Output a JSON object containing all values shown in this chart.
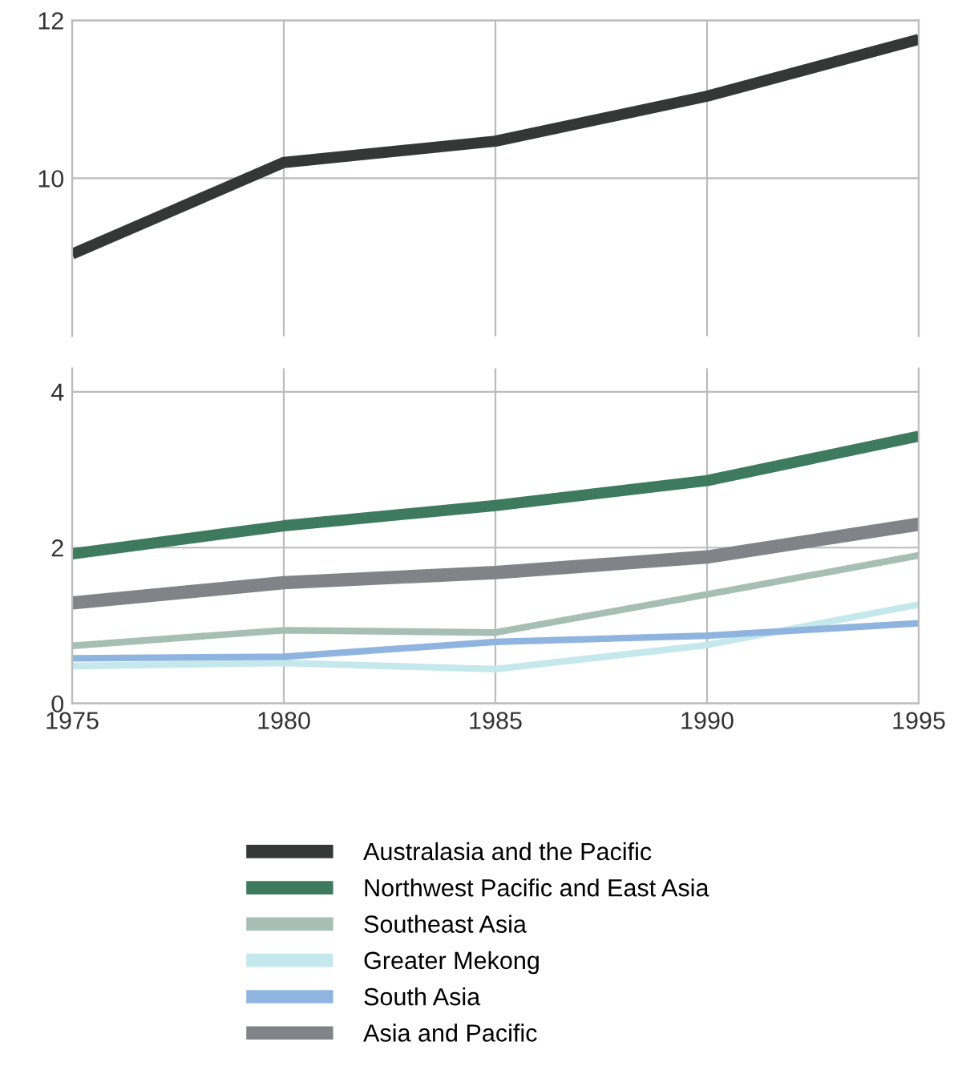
{
  "chart_data": [
    {
      "type": "line",
      "x": [
        1975,
        1980,
        1985,
        1990,
        1995
      ],
      "xlim": [
        1975,
        1995
      ],
      "xticks": [
        1975,
        1980,
        1985,
        1990,
        1995
      ],
      "ylim": [
        8,
        12
      ],
      "yticks": [
        10,
        12
      ],
      "tick_labels": "y",
      "grid": true,
      "series": [
        {
          "name": "Australasia and the Pacific",
          "color": "#333836",
          "values": [
            9.04,
            10.2,
            10.47,
            11.04,
            11.76
          ]
        }
      ]
    },
    {
      "type": "line",
      "x": [
        1975,
        1980,
        1985,
        1990,
        1995
      ],
      "xlim": [
        1975,
        1995
      ],
      "xticks": [
        1975,
        1980,
        1985,
        1990,
        1995
      ],
      "ylim": [
        0,
        4.3
      ],
      "yticks": [
        0,
        2,
        4
      ],
      "grid": true,
      "legend": "bottom",
      "series": [
        {
          "name": "Northwest Pacific and East Asia",
          "color": "#3e7a5e",
          "values": [
            1.92,
            2.28,
            2.54,
            2.86,
            3.43
          ]
        },
        {
          "name": "Southeast Asia",
          "color": "#a6beb4",
          "values": [
            0.74,
            0.94,
            0.91,
            1.4,
            1.9
          ]
        },
        {
          "name": "Greater Mekong",
          "color": "#c5e8ec",
          "values": [
            0.48,
            0.52,
            0.44,
            0.75,
            1.27
          ]
        },
        {
          "name": "South Asia",
          "color": "#90b4e0",
          "values": [
            0.58,
            0.6,
            0.79,
            0.87,
            1.03
          ]
        },
        {
          "name": "Asia and Pacific",
          "color": "#808488",
          "values": [
            1.29,
            1.55,
            1.68,
            1.88,
            2.3
          ]
        }
      ]
    }
  ]
}
